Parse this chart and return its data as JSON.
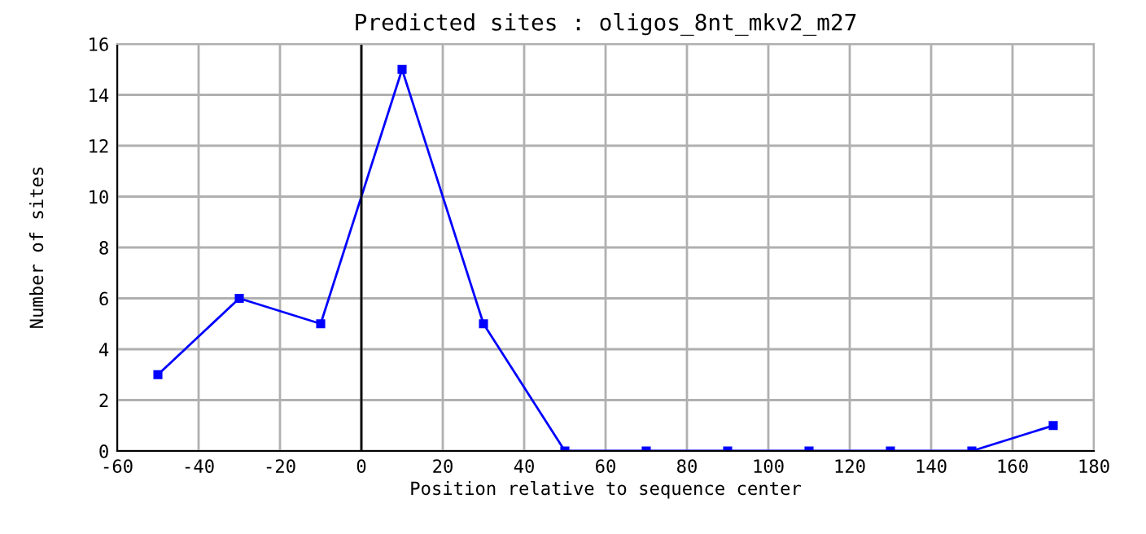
{
  "chart_data": {
    "type": "line",
    "title": "Predicted sites : oligos_8nt_mkv2_m27",
    "xlabel": "Position relative to sequence center",
    "ylabel": "Number of sites",
    "x": [
      -50,
      -30,
      -10,
      10,
      30,
      50,
      70,
      90,
      110,
      130,
      150,
      170
    ],
    "series": [
      {
        "color": "#0000ff",
        "values": [
          3,
          6,
          5,
          15,
          5,
          0,
          0,
          0,
          0,
          0,
          0,
          1
        ]
      }
    ],
    "xlim": [
      -60,
      180
    ],
    "xticks": [
      -60,
      -40,
      -20,
      0,
      20,
      40,
      60,
      80,
      100,
      120,
      140,
      160,
      180
    ],
    "ylim": [
      0,
      16
    ],
    "yticks": [
      0,
      2,
      4,
      6,
      8,
      10,
      12,
      14,
      16
    ],
    "grid": true,
    "marker": "square",
    "line_style": "solid",
    "ref_lines": [
      {
        "axis": "x",
        "value": 0,
        "color": "#000000"
      }
    ]
  }
}
